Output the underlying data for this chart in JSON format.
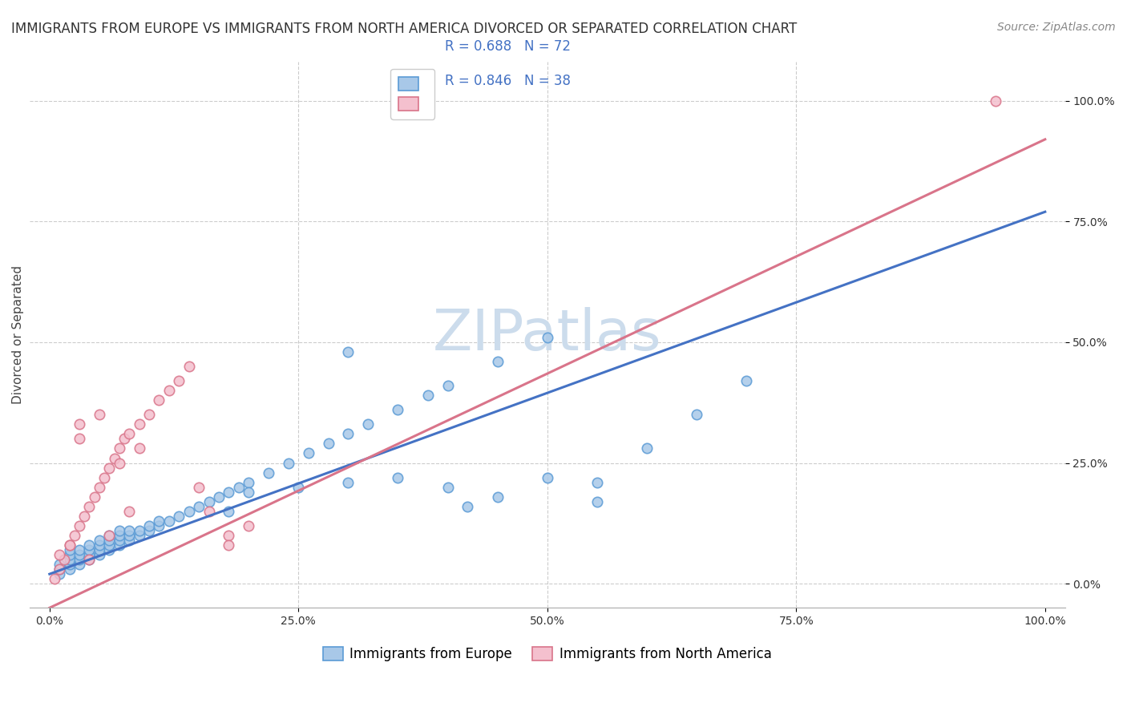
{
  "title": "IMMIGRANTS FROM EUROPE VS IMMIGRANTS FROM NORTH AMERICA DIVORCED OR SEPARATED CORRELATION CHART",
  "source": "Source: ZipAtlas.com",
  "ylabel": "Divorced or Separated",
  "legend_europe_label": "Immigrants from Europe",
  "legend_na_label": "Immigrants from North America",
  "R_europe": "R = 0.688",
  "N_europe": "N = 72",
  "R_na": "R = 0.846",
  "N_na": "N = 38",
  "europe_color": "#a8c8e8",
  "europe_edge_color": "#5b9bd5",
  "europe_line_color": "#4472c4",
  "na_color": "#f4c0ce",
  "na_edge_color": "#d9748a",
  "na_line_color": "#d9748a",
  "watermark": "ZIPatlas",
  "watermark_color": "#ccdcec",
  "background_color": "#ffffff",
  "grid_color": "#cccccc",
  "europe_line_x": [
    0,
    100
  ],
  "europe_line_y": [
    2.0,
    77.0
  ],
  "na_line_x": [
    0,
    100
  ],
  "na_line_y": [
    -5.0,
    92.0
  ],
  "xlim": [
    -2,
    102
  ],
  "ylim": [
    -5,
    108
  ],
  "xtick_positions": [
    0,
    25,
    50,
    75,
    100
  ],
  "ytick_positions": [
    0,
    25,
    50,
    75,
    100
  ],
  "xtick_labels": [
    "0.0%",
    "25.0%",
    "50.0%",
    "75.0%",
    "100.0%"
  ],
  "ytick_labels": [
    "0.0%",
    "25.0%",
    "50.0%",
    "75.0%",
    "100.0%"
  ],
  "europe_x": [
    1,
    1,
    1,
    2,
    2,
    2,
    2,
    2,
    3,
    3,
    3,
    3,
    4,
    4,
    4,
    4,
    5,
    5,
    5,
    5,
    6,
    6,
    6,
    6,
    7,
    7,
    7,
    7,
    8,
    8,
    8,
    9,
    9,
    10,
    10,
    11,
    11,
    12,
    13,
    14,
    15,
    16,
    17,
    18,
    19,
    20,
    22,
    24,
    26,
    28,
    30,
    32,
    35,
    38,
    40,
    45,
    50,
    55,
    60,
    65,
    70,
    30,
    40,
    45,
    50,
    55,
    20,
    25,
    30,
    35,
    42,
    18
  ],
  "europe_y": [
    2,
    3,
    4,
    3,
    4,
    5,
    6,
    7,
    4,
    5,
    6,
    7,
    5,
    6,
    7,
    8,
    6,
    7,
    8,
    9,
    7,
    8,
    9,
    10,
    8,
    9,
    10,
    11,
    9,
    10,
    11,
    10,
    11,
    11,
    12,
    12,
    13,
    13,
    14,
    15,
    16,
    17,
    18,
    19,
    20,
    21,
    23,
    25,
    27,
    29,
    31,
    33,
    36,
    39,
    41,
    46,
    51,
    21,
    28,
    35,
    42,
    48,
    20,
    18,
    22,
    17,
    19,
    20,
    21,
    22,
    16,
    15
  ],
  "na_x": [
    0.5,
    1,
    1.5,
    2,
    2.5,
    3,
    3.5,
    4,
    4.5,
    5,
    5.5,
    6,
    6.5,
    7,
    7.5,
    8,
    9,
    10,
    11,
    12,
    13,
    14,
    15,
    16,
    18,
    20,
    3,
    5,
    7,
    9,
    2,
    4,
    6,
    1,
    95,
    18,
    8,
    3
  ],
  "na_y": [
    1,
    3,
    5,
    8,
    10,
    12,
    14,
    16,
    18,
    20,
    22,
    24,
    26,
    28,
    30,
    31,
    33,
    35,
    38,
    40,
    42,
    45,
    20,
    15,
    10,
    12,
    30,
    35,
    25,
    28,
    8,
    5,
    10,
    6,
    100,
    8,
    15,
    33
  ],
  "title_fontsize": 12,
  "source_fontsize": 10,
  "axis_label_fontsize": 11,
  "tick_fontsize": 10,
  "legend_fontsize": 12,
  "marker_size": 80,
  "marker_linewidth": 1.2
}
